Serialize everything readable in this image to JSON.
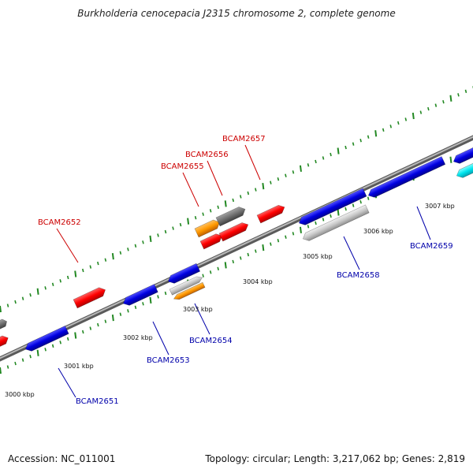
{
  "title": "Burkholderia cenocepacia J2315 chromosome 2, complete genome",
  "footer": {
    "accession": "Accession: NC_011001",
    "summary": "Topology: circular; Length: 3,217,062 bp; Genes: 2,819"
  },
  "colors": {
    "forward_gene": "#ff0000",
    "reverse_gene": "#0000dd",
    "forward_label": "#cc0000",
    "reverse_label": "#0000aa",
    "backbone": "#888888",
    "tick": "#228822",
    "grey_gene": "#7a7a7a",
    "orange_gene": "#ff9900",
    "cyan_gene": "#00e5ee",
    "light_grey_gene": "#c8c8c8"
  },
  "scale_ticks": [
    {
      "label": "3000 kbp"
    },
    {
      "label": "3001 kbp"
    },
    {
      "label": "3002 kbp"
    },
    {
      "label": "3003 kbp"
    },
    {
      "label": "3004 kbp"
    },
    {
      "label": "3005 kbp"
    },
    {
      "label": "3006 kbp"
    },
    {
      "label": "3007 kbp"
    }
  ],
  "gene_labels": [
    {
      "name": "BCAM2651",
      "strand": "reverse"
    },
    {
      "name": "BCAM2652",
      "strand": "forward"
    },
    {
      "name": "BCAM2653",
      "strand": "reverse"
    },
    {
      "name": "BCAM2654",
      "strand": "reverse"
    },
    {
      "name": "BCAM2655",
      "strand": "forward"
    },
    {
      "name": "BCAM2656",
      "strand": "forward"
    },
    {
      "name": "BCAM2657",
      "strand": "forward"
    },
    {
      "name": "BCAM2658",
      "strand": "reverse"
    },
    {
      "name": "BCAM2659",
      "strand": "reverse"
    }
  ]
}
